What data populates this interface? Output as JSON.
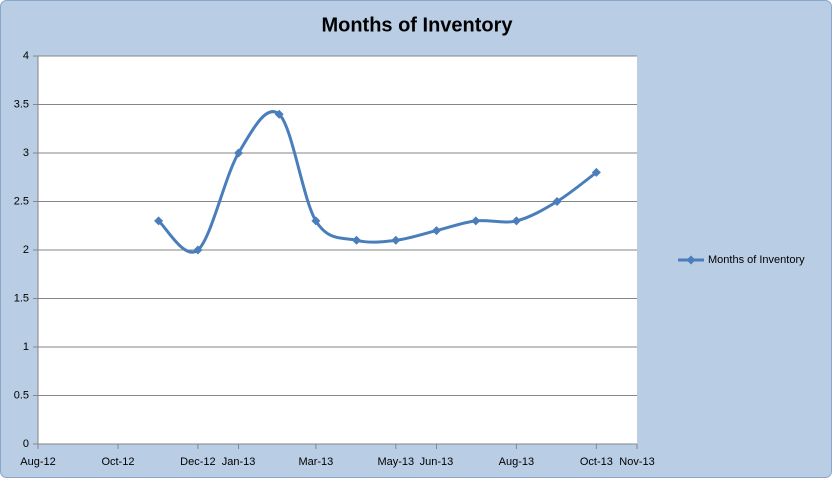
{
  "chart_data": {
    "type": "line",
    "title": "Months of Inventory",
    "x": [
      "2012-11",
      "2012-12",
      "2013-01",
      "2013-02",
      "2013-03",
      "2013-04",
      "2013-05",
      "2013-06",
      "2013-07",
      "2013-08",
      "2013-09",
      "2013-10"
    ],
    "series": [
      {
        "name": "Months of Inventory",
        "color": "#4a7ebb",
        "values": [
          2.3,
          2.0,
          3.0,
          3.4,
          2.3,
          2.1,
          2.1,
          2.2,
          2.3,
          2.3,
          2.5,
          2.8
        ]
      }
    ],
    "xlim": [
      "2012-08",
      "2013-11"
    ],
    "xticks": [
      {
        "value": "2012-08",
        "label": "Aug-12"
      },
      {
        "value": "2012-10",
        "label": "Oct-12"
      },
      {
        "value": "2012-12",
        "label": "Dec-12"
      },
      {
        "value": "2013-01",
        "label": "Jan-13"
      },
      {
        "value": "2013-03",
        "label": "Mar-13"
      },
      {
        "value": "2013-05",
        "label": "May-13"
      },
      {
        "value": "2013-06",
        "label": "Jun-13"
      },
      {
        "value": "2013-08",
        "label": "Aug-13"
      },
      {
        "value": "2013-10",
        "label": "Oct-13"
      },
      {
        "value": "2013-11",
        "label": "Nov-13"
      }
    ],
    "ylim": [
      0,
      4
    ],
    "yticks": [
      0,
      0.5,
      1,
      1.5,
      2,
      2.5,
      3,
      3.5,
      4
    ],
    "grid": true,
    "smooth": true,
    "legend": "right"
  }
}
